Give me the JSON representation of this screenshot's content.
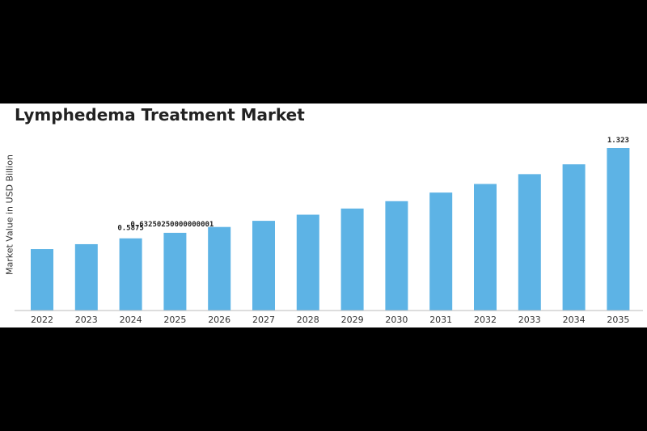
{
  "chart_data": {
    "type": "bar",
    "title": "Lymphedema Treatment Market",
    "xlabel": "",
    "ylabel": "Market Value in USD Billion",
    "categories": [
      "2022",
      "2023",
      "2024",
      "2025",
      "2026",
      "2027",
      "2028",
      "2029",
      "2030",
      "2031",
      "2032",
      "2033",
      "2034",
      "2035"
    ],
    "values": [
      0.5,
      0.54,
      0.5875,
      0.6325,
      0.68,
      0.73,
      0.78,
      0.83,
      0.89,
      0.96,
      1.03,
      1.11,
      1.19,
      1.323
    ],
    "data_labels": [
      {
        "index": 2,
        "text": "0.5875"
      },
      {
        "index": 3,
        "text": "0.63250250000000001"
      },
      {
        "index": 13,
        "text": "1.323"
      }
    ],
    "ylim": [
      0,
      1.323
    ],
    "grid": false,
    "bar_color": "#5db3e5",
    "axis_color": "#bbbbbb"
  }
}
